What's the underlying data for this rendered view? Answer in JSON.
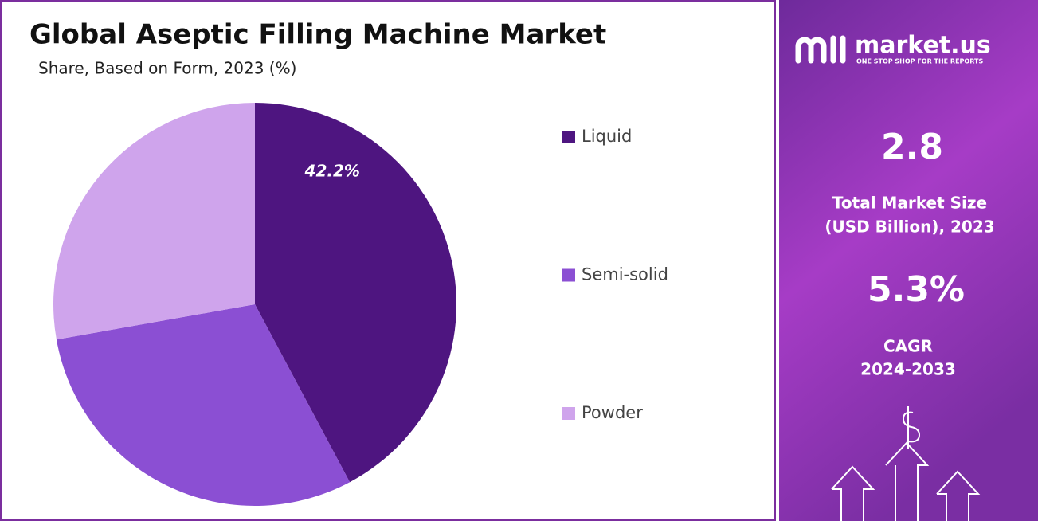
{
  "chart_data": {
    "type": "pie",
    "title": "Global Aseptic Filling Machine Market",
    "subtitle": "Share, Based on Form, 2023 (%)",
    "categories": [
      "Liquid",
      "Semi-solid",
      "Powder"
    ],
    "values": [
      42.2,
      30.0,
      27.8
    ],
    "value_labels": [
      "42.2%",
      null,
      null
    ],
    "colors": [
      "#4e1580",
      "#8b4fd3",
      "#cfa4ec"
    ],
    "legend": "right"
  },
  "sidebar": {
    "brand": "market.us",
    "tagline": "ONE STOP SHOP FOR THE REPORTS",
    "market_size": "2.8",
    "market_size_label": [
      "Total Market Size",
      "(USD Billion), 2023"
    ],
    "cagr": "5.3%",
    "cagr_label": [
      "CAGR",
      "2024-2033"
    ]
  }
}
